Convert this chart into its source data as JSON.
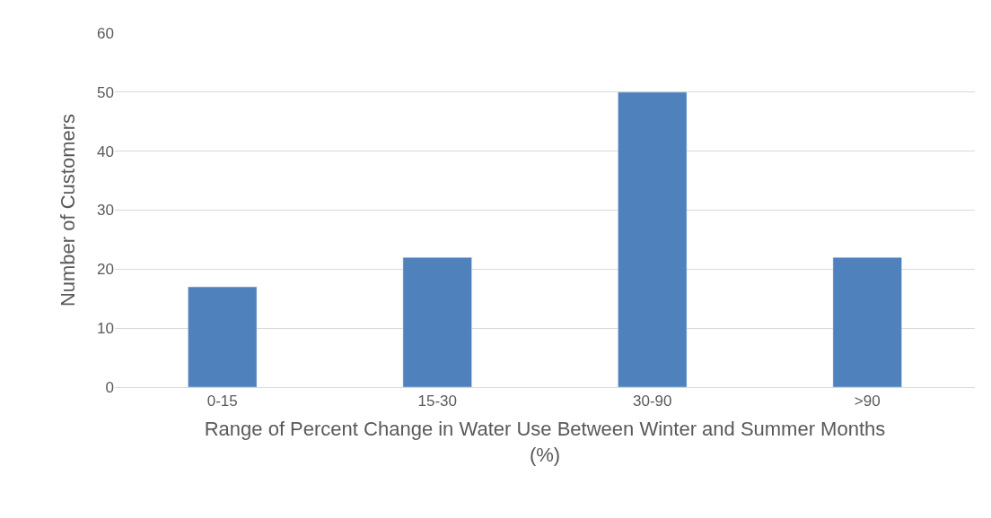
{
  "chart_data": {
    "type": "bar",
    "categories": [
      "0-15",
      "15-30",
      "30-90",
      ">90"
    ],
    "values": [
      17,
      22,
      50,
      22
    ],
    "color": "#4f81bd",
    "xlabel": "Range of Percent Change in Water Use Between Winter and Summer Months (%)",
    "ylabel": "Number of Customers",
    "ylim": [
      0,
      60
    ],
    "yticks": [
      0,
      10,
      20,
      30,
      40,
      50,
      60
    ],
    "grid": "y",
    "legend": false
  }
}
